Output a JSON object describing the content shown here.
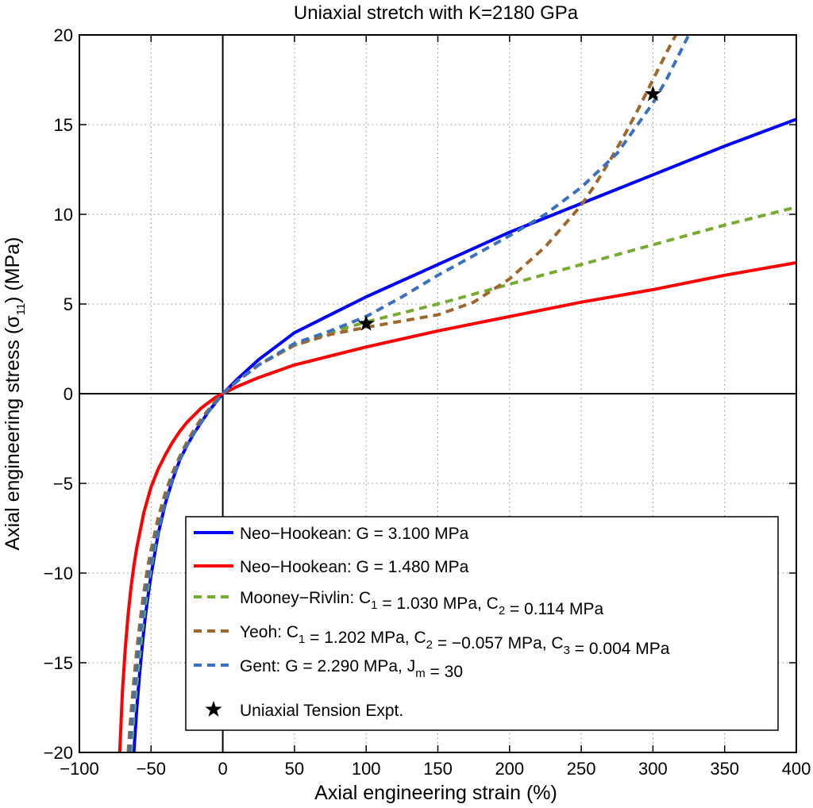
{
  "chart_data": {
    "type": "line",
    "title": "Uniaxial stretch with K=2180 GPa",
    "xlabel": "Axial engineering strain (%)",
    "ylabel": "Axial engineering stress (σ",
    "ylabel_sub": "11",
    "ylabel_end": ") (MPa)",
    "xlim": [
      -100,
      400
    ],
    "ylim": [
      -20,
      20
    ],
    "xticks": [
      -100,
      -50,
      0,
      50,
      100,
      150,
      200,
      250,
      300,
      350,
      400
    ],
    "yticks": [
      -20,
      -15,
      -10,
      -5,
      0,
      5,
      10,
      15,
      20
    ],
    "xtick_labels": [
      "−100",
      "−50",
      "0",
      "50",
      "100",
      "150",
      "200",
      "250",
      "300",
      "350",
      "400"
    ],
    "ytick_labels": [
      "−20",
      "−15",
      "−10",
      "−5",
      "0",
      "5",
      "10",
      "15",
      "20"
    ],
    "grid": true,
    "legend_position": "bottom-right",
    "series": [
      {
        "legend": [
          {
            "t": "Neo−Hookean: G = 3.100 MPa"
          }
        ],
        "color": "#0000ff",
        "dash": "solid",
        "x": [
          -62,
          -60,
          -58,
          -56,
          -54,
          -52,
          -50,
          -45,
          -40,
          -35,
          -30,
          -25,
          -20,
          -15,
          -10,
          -5,
          0,
          10,
          25,
          50,
          75,
          100,
          150,
          200,
          250,
          300,
          350,
          400
        ],
        "y": [
          -20,
          -17.6,
          -15.6,
          -13.9,
          -12.4,
          -11.2,
          -10.1,
          -7.8,
          -6.1,
          -4.8,
          -3.7,
          -2.9,
          -2.2,
          -1.6,
          -1.0,
          -0.5,
          0,
          0.8,
          1.9,
          3.4,
          4.4,
          5.4,
          7.2,
          9.0,
          10.6,
          12.2,
          13.8,
          15.3
        ]
      },
      {
        "legend": [
          {
            "t": "Neo−Hookean: G = 1.480 MPa"
          }
        ],
        "color": "#ff0000",
        "dash": "solid",
        "x": [
          -73,
          -70,
          -68,
          -66,
          -64,
          -62,
          -60,
          -55,
          -50,
          -45,
          -40,
          -35,
          -30,
          -25,
          -20,
          -15,
          -10,
          -5,
          0,
          10,
          25,
          50,
          75,
          100,
          150,
          200,
          250,
          300,
          350,
          400
        ],
        "y": [
          -22,
          -16.6,
          -14.2,
          -12.3,
          -10.8,
          -9.6,
          -8.6,
          -6.6,
          -5.2,
          -4.2,
          -3.4,
          -2.7,
          -2.1,
          -1.6,
          -1.2,
          -0.8,
          -0.5,
          -0.2,
          0,
          0.4,
          0.9,
          1.6,
          2.1,
          2.6,
          3.5,
          4.3,
          5.1,
          5.8,
          6.6,
          7.3
        ]
      },
      {
        "legend": [
          {
            "t": "Mooney−Rivlin: C"
          },
          {
            "t": "1",
            "sub": true
          },
          {
            "t": " = 1.030 MPa, C"
          },
          {
            "t": "2",
            "sub": true
          },
          {
            "t": " = 0.114 MPa"
          }
        ],
        "color": "#77ac30",
        "dash": "dashed",
        "x": [
          -64,
          -62,
          -60,
          -58,
          -56,
          -54,
          -52,
          -50,
          -45,
          -40,
          -35,
          -30,
          -25,
          -20,
          -15,
          -10,
          -5,
          0,
          10,
          25,
          50,
          75,
          100,
          150,
          200,
          250,
          300,
          350,
          400
        ],
        "y": [
          -20,
          -18.0,
          -16.2,
          -14.6,
          -13.1,
          -11.8,
          -10.7,
          -9.7,
          -7.6,
          -6.0,
          -4.7,
          -3.7,
          -2.9,
          -2.2,
          -1.6,
          -1.0,
          -0.5,
          0,
          0.7,
          1.6,
          2.7,
          3.4,
          4.0,
          5.0,
          6.1,
          7.2,
          8.3,
          9.4,
          10.4
        ]
      },
      {
        "legend": [
          {
            "t": "Yeoh: C"
          },
          {
            "t": "1",
            "sub": true
          },
          {
            "t": " = 1.202 MPa, C"
          },
          {
            "t": "2",
            "sub": true
          },
          {
            "t": " = −0.057 MPa, C"
          },
          {
            "t": "3",
            "sub": true
          },
          {
            "t": " = 0.004 MPa"
          }
        ],
        "color": "#a0672c",
        "dash": "dashed",
        "x": [
          -66,
          -64,
          -62,
          -60,
          -58,
          -56,
          -54,
          -52,
          -50,
          -45,
          -40,
          -35,
          -30,
          -25,
          -20,
          -15,
          -10,
          -5,
          0,
          10,
          25,
          50,
          75,
          100,
          150,
          175,
          200,
          225,
          250,
          260,
          270,
          280,
          290,
          300,
          310,
          320,
          325
        ],
        "y": [
          -20,
          -17.8,
          -16.0,
          -14.3,
          -12.9,
          -11.6,
          -10.5,
          -9.5,
          -8.7,
          -6.9,
          -5.5,
          -4.4,
          -3.5,
          -2.7,
          -2.0,
          -1.4,
          -0.9,
          -0.4,
          0,
          0.7,
          1.6,
          2.7,
          3.3,
          3.7,
          4.4,
          5.1,
          6.4,
          8.2,
          10.5,
          11.7,
          13.0,
          14.4,
          15.9,
          17.5,
          19.1,
          20.6,
          21.5
        ]
      },
      {
        "legend": [
          {
            "t": "Gent: G = 2.290 MPa, J"
          },
          {
            "t": "m",
            "sub": true
          },
          {
            "t": " = 30"
          }
        ],
        "color": "#3a70c0",
        "dash": "dashed",
        "x": [
          -65,
          -63,
          -61,
          -59,
          -57,
          -55,
          -53,
          -51,
          -49,
          -45,
          -40,
          -35,
          -30,
          -25,
          -20,
          -15,
          -10,
          -5,
          0,
          10,
          25,
          50,
          75,
          100,
          125,
          150,
          175,
          200,
          225,
          250,
          275,
          300,
          310,
          320,
          325
        ],
        "y": [
          -20,
          -17.9,
          -16.1,
          -14.5,
          -13.0,
          -11.8,
          -10.7,
          -9.8,
          -8.9,
          -7.5,
          -6.0,
          -4.7,
          -3.7,
          -2.9,
          -2.2,
          -1.6,
          -1.0,
          -0.5,
          0,
          0.7,
          1.6,
          2.8,
          3.5,
          4.3,
          5.4,
          6.6,
          7.7,
          8.8,
          10.0,
          11.5,
          13.4,
          16.2,
          17.6,
          19.2,
          20.0
        ]
      }
    ],
    "experiment": {
      "legend": [
        {
          "t": "Uniaxial Tension Expt."
        }
      ],
      "marker": "star",
      "x": [
        100,
        300
      ],
      "y": [
        3.9,
        16.7
      ]
    }
  }
}
